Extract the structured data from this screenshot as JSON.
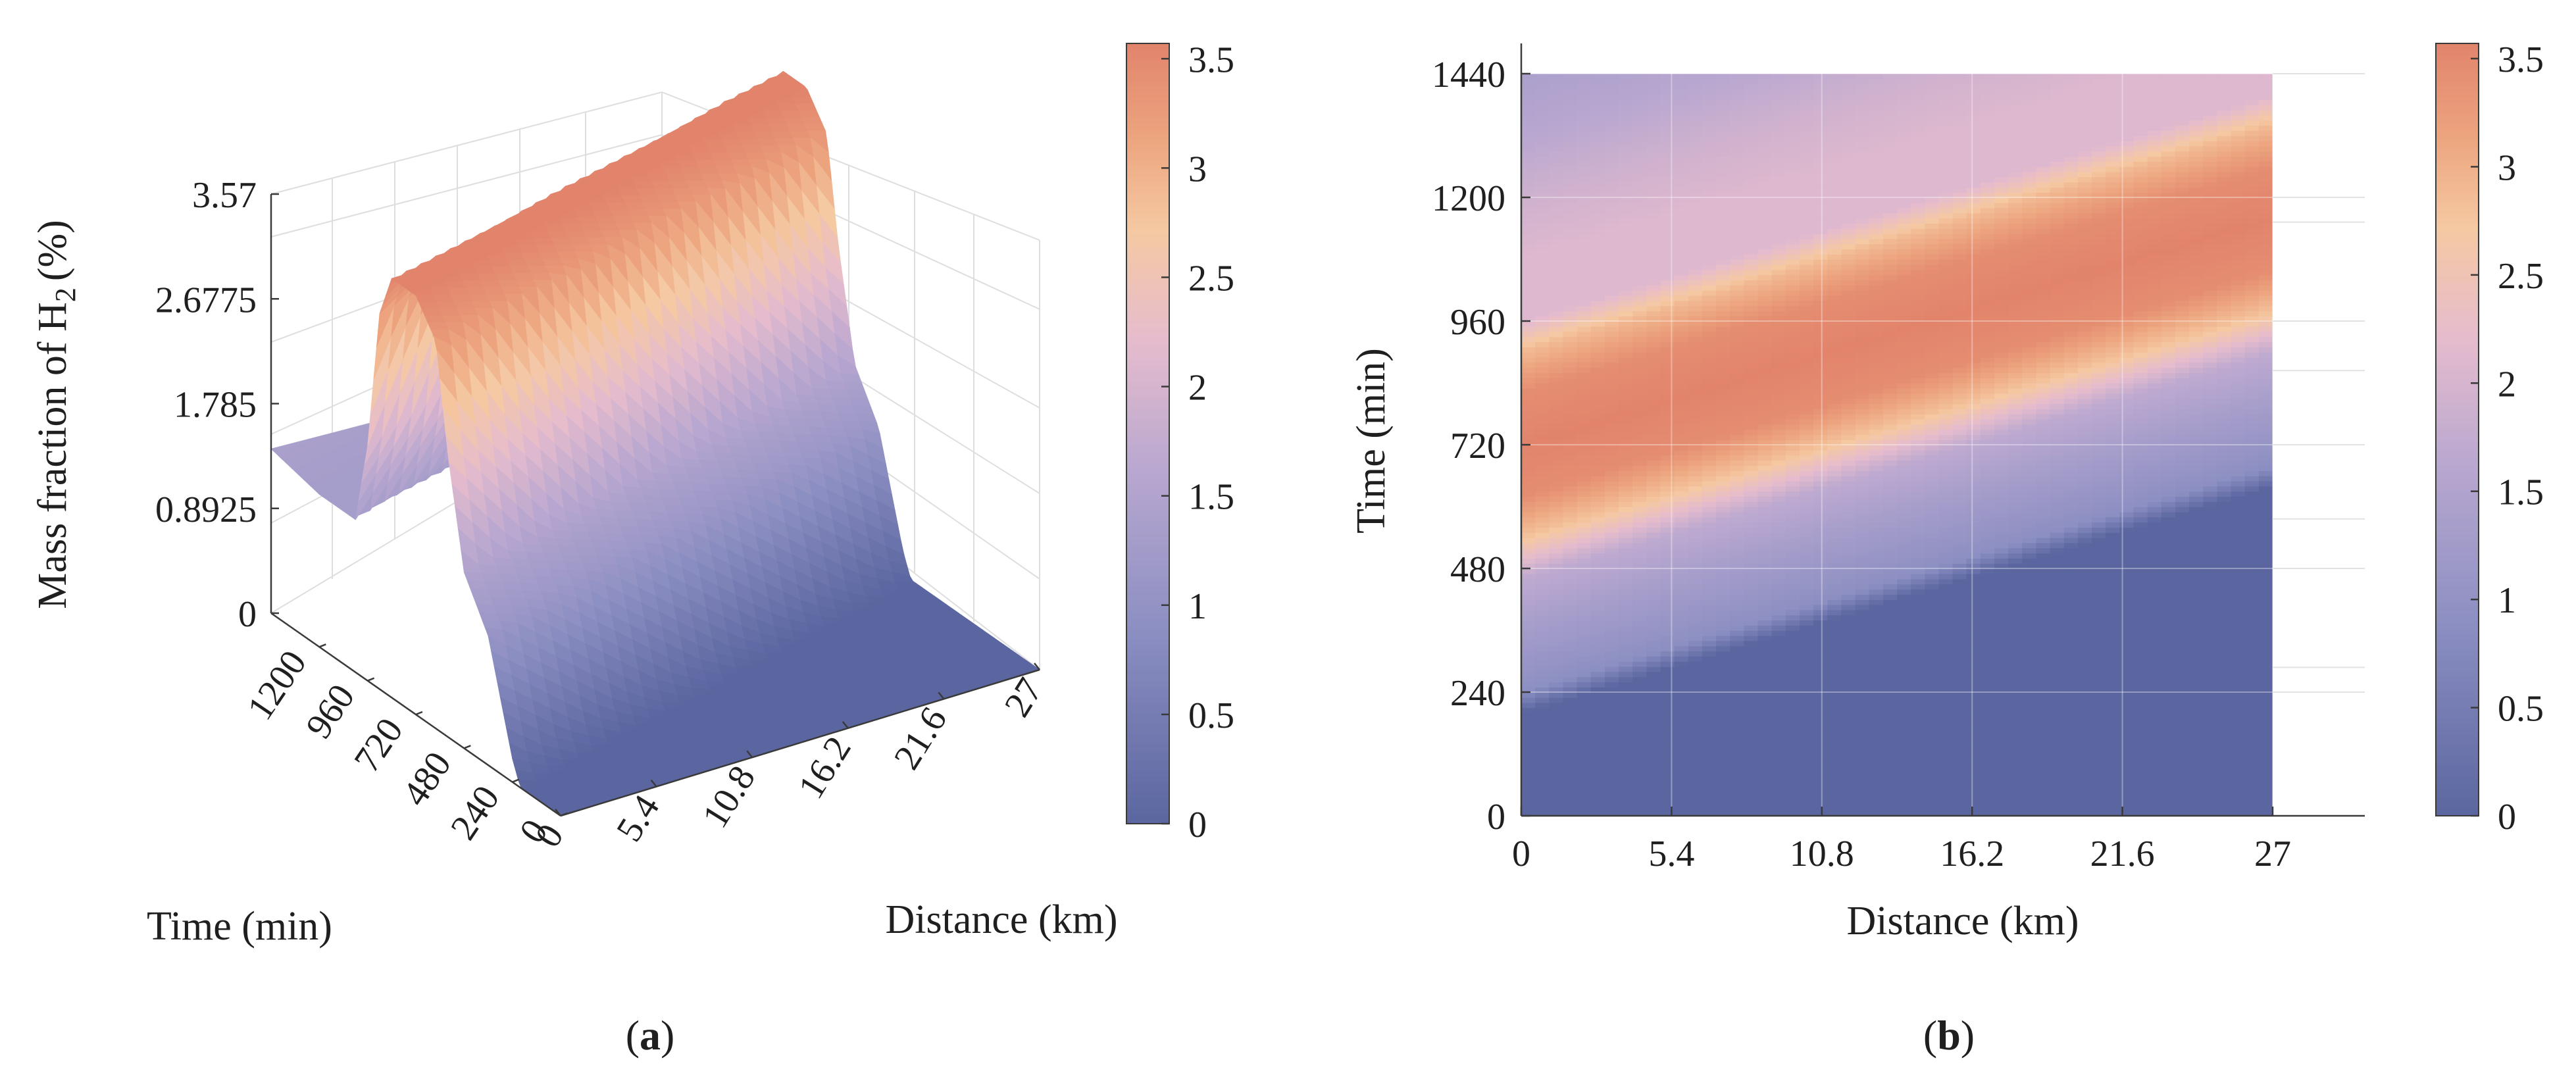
{
  "panels": [
    {
      "caption_open": "(",
      "caption_letter": "a",
      "caption_close": ")",
      "chart_data": {
        "type": "surface",
        "zlabel": "Mass fraction of H",
        "zlabel_subscript": "2",
        "zlabel_unit": "(%)",
        "xlabel": "Distance (km)",
        "ylabel": "Time (min)",
        "x_ticks": [
          "0",
          "5.4",
          "10.8",
          "16.2",
          "21.6",
          "27"
        ],
        "y_ticks": [
          "0",
          "240",
          "480",
          "720",
          "960",
          "1200"
        ],
        "z_ticks": [
          "0",
          "0.8925",
          "1.785",
          "2.6775",
          "3.57"
        ],
        "xlim": [
          0,
          27
        ],
        "ylim": [
          0,
          1440
        ],
        "zlim": [
          0,
          3.57
        ],
        "grid": true,
        "colorbar": {
          "ticks": [
            "0",
            "0.5",
            "1",
            "1.5",
            "2",
            "2.5",
            "3",
            "3.5"
          ],
          "range": [
            0,
            3.57
          ]
        },
        "time_profile": [
          {
            "t": 0,
            "v": 0
          },
          {
            "t": 200,
            "v": 0
          },
          {
            "t": 240,
            "v": 0.2
          },
          {
            "t": 360,
            "v": 1.1
          },
          {
            "t": 480,
            "v": 1.5
          },
          {
            "t": 560,
            "v": 2.4
          },
          {
            "t": 620,
            "v": 3.3
          },
          {
            "t": 720,
            "v": 3.57
          },
          {
            "t": 840,
            "v": 3.57
          },
          {
            "t": 900,
            "v": 3.2
          },
          {
            "t": 960,
            "v": 2.0
          },
          {
            "t": 1020,
            "v": 1.3
          },
          {
            "t": 1200,
            "v": 1.3
          },
          {
            "t": 1320,
            "v": 1.35
          },
          {
            "t": 1440,
            "v": 1.4
          }
        ],
        "front_lag_min_per_km": 16.3
      }
    },
    {
      "caption_open": "(",
      "caption_letter": "b",
      "caption_close": ")",
      "chart_data": {
        "type": "heatmap",
        "xlabel": "Distance (km)",
        "ylabel": "Time (min)",
        "x_ticks": [
          "0",
          "5.4",
          "10.8",
          "16.2",
          "21.6",
          "27"
        ],
        "y_ticks": [
          "0",
          "240",
          "480",
          "720",
          "960",
          "1200",
          "1440"
        ],
        "xlim": [
          0,
          27
        ],
        "ylim": [
          0,
          1440
        ],
        "grid": true,
        "colorbar": {
          "ticks": [
            "0",
            "0.5",
            "1",
            "1.5",
            "2",
            "2.5",
            "3",
            "3.5"
          ],
          "range": [
            0,
            3.57
          ]
        },
        "time_profile": [
          {
            "t": 0,
            "v": 0
          },
          {
            "t": 200,
            "v": 0
          },
          {
            "t": 240,
            "v": 0.9
          },
          {
            "t": 360,
            "v": 1.3
          },
          {
            "t": 460,
            "v": 1.7
          },
          {
            "t": 540,
            "v": 2.8
          },
          {
            "t": 620,
            "v": 3.45
          },
          {
            "t": 720,
            "v": 3.57
          },
          {
            "t": 820,
            "v": 3.45
          },
          {
            "t": 900,
            "v": 2.9
          },
          {
            "t": 960,
            "v": 2.1
          },
          {
            "t": 1080,
            "v": 2.1
          },
          {
            "t": 1200,
            "v": 1.9
          },
          {
            "t": 1320,
            "v": 1.6
          },
          {
            "t": 1440,
            "v": 1.4
          }
        ],
        "front_lag_min_per_km": 16.3
      }
    }
  ]
}
